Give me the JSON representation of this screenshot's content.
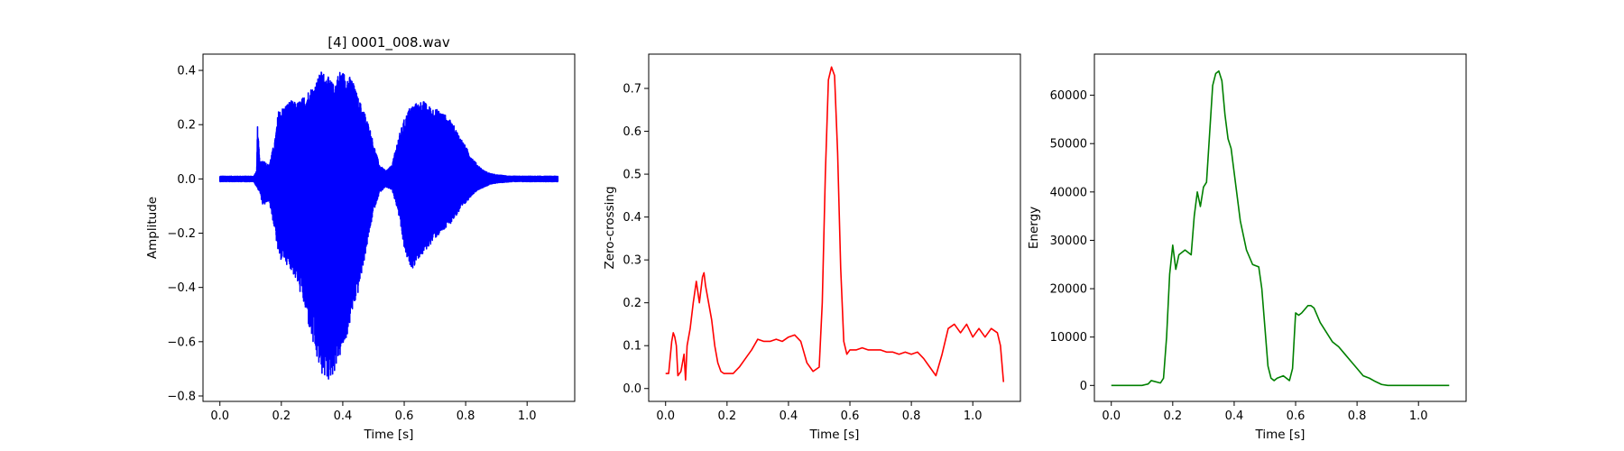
{
  "chart_data": [
    {
      "type": "line",
      "title": "[4] 0001_008.wav",
      "xlabel": "Time [s]",
      "ylabel": "Amplitude",
      "xlim": [
        -0.055,
        1.155
      ],
      "ylim": [
        -0.82,
        0.46
      ],
      "xticks": [
        0.0,
        0.2,
        0.4,
        0.6,
        0.8,
        1.0
      ],
      "xtick_labels": [
        "0.0",
        "0.2",
        "0.4",
        "0.6",
        "0.8",
        "1.0"
      ],
      "yticks": [
        0.4,
        0.2,
        0.0,
        -0.2,
        -0.4,
        -0.6,
        -0.8
      ],
      "ytick_labels": [
        "0.4",
        "0.2",
        "0.0",
        "−0.2",
        "−0.4",
        "−0.6",
        "−0.8"
      ],
      "grid": false,
      "series": [
        {
          "color": "#0000ff",
          "style": "waveform",
          "upper_envelope": {
            "x": [
              0.0,
              0.11,
              0.12,
              0.122,
              0.13,
              0.14,
              0.16,
              0.18,
              0.19,
              0.21,
              0.23,
              0.25,
              0.27,
              0.29,
              0.31,
              0.33,
              0.35,
              0.37,
              0.39,
              0.41,
              0.43,
              0.45,
              0.47,
              0.49,
              0.5,
              0.52,
              0.54,
              0.56,
              0.58,
              0.6,
              0.62,
              0.64,
              0.66,
              0.68,
              0.7,
              0.72,
              0.74,
              0.76,
              0.78,
              0.8,
              0.82,
              0.84,
              0.86,
              0.88,
              0.9,
              0.95,
              1.0,
              1.1
            ],
            "y": [
              0.01,
              0.01,
              0.03,
              0.21,
              0.06,
              0.07,
              0.05,
              0.15,
              0.25,
              0.27,
              0.29,
              0.28,
              0.3,
              0.33,
              0.35,
              0.4,
              0.38,
              0.35,
              0.4,
              0.39,
              0.37,
              0.3,
              0.25,
              0.18,
              0.13,
              0.05,
              0.03,
              0.05,
              0.15,
              0.22,
              0.27,
              0.28,
              0.29,
              0.27,
              0.26,
              0.25,
              0.23,
              0.2,
              0.16,
              0.12,
              0.08,
              0.05,
              0.03,
              0.02,
              0.015,
              0.01,
              0.01,
              0.01
            ]
          },
          "lower_envelope": {
            "x": [
              0.0,
              0.11,
              0.12,
              0.13,
              0.14,
              0.16,
              0.18,
              0.19,
              0.2,
              0.21,
              0.22,
              0.23,
              0.25,
              0.27,
              0.29,
              0.31,
              0.33,
              0.35,
              0.37,
              0.39,
              0.41,
              0.43,
              0.45,
              0.47,
              0.49,
              0.5,
              0.52,
              0.54,
              0.56,
              0.58,
              0.6,
              0.61,
              0.62,
              0.63,
              0.64,
              0.66,
              0.68,
              0.7,
              0.72,
              0.74,
              0.76,
              0.78,
              0.8,
              0.82,
              0.84,
              0.86,
              0.88,
              0.9,
              0.95,
              1.0,
              1.1
            ],
            "y": [
              -0.01,
              -0.01,
              -0.03,
              -0.05,
              -0.1,
              -0.08,
              -0.2,
              -0.28,
              -0.3,
              -0.3,
              -0.32,
              -0.33,
              -0.38,
              -0.45,
              -0.55,
              -0.65,
              -0.72,
              -0.75,
              -0.72,
              -0.66,
              -0.6,
              -0.5,
              -0.42,
              -0.3,
              -0.18,
              -0.12,
              -0.05,
              -0.03,
              -0.04,
              -0.12,
              -0.26,
              -0.3,
              -0.32,
              -0.33,
              -0.3,
              -0.28,
              -0.25,
              -0.22,
              -0.2,
              -0.18,
              -0.15,
              -0.12,
              -0.09,
              -0.06,
              -0.04,
              -0.03,
              -0.02,
              -0.015,
              -0.01,
              -0.01,
              -0.01
            ]
          }
        }
      ]
    },
    {
      "type": "line",
      "title": "",
      "xlabel": "Time [s]",
      "ylabel": "Zero-crossing",
      "xlim": [
        -0.055,
        1.155
      ],
      "ylim": [
        -0.03,
        0.78
      ],
      "xticks": [
        0.0,
        0.2,
        0.4,
        0.6,
        0.8,
        1.0
      ],
      "xtick_labels": [
        "0.0",
        "0.2",
        "0.4",
        "0.6",
        "0.8",
        "1.0"
      ],
      "yticks": [
        0.7,
        0.6,
        0.5,
        0.4,
        0.3,
        0.2,
        0.1,
        0.0
      ],
      "ytick_labels": [
        "0.7",
        "0.6",
        "0.5",
        "0.4",
        "0.3",
        "0.2",
        "0.1",
        "0.0"
      ],
      "grid": false,
      "series": [
        {
          "color": "#ff0000",
          "x": [
            0.0,
            0.01,
            0.02,
            0.025,
            0.03,
            0.035,
            0.04,
            0.05,
            0.06,
            0.065,
            0.07,
            0.08,
            0.09,
            0.1,
            0.11,
            0.12,
            0.125,
            0.13,
            0.14,
            0.15,
            0.16,
            0.17,
            0.18,
            0.19,
            0.2,
            0.22,
            0.24,
            0.26,
            0.28,
            0.3,
            0.32,
            0.34,
            0.36,
            0.38,
            0.4,
            0.42,
            0.44,
            0.46,
            0.48,
            0.5,
            0.51,
            0.52,
            0.53,
            0.54,
            0.55,
            0.56,
            0.57,
            0.58,
            0.59,
            0.6,
            0.62,
            0.64,
            0.66,
            0.68,
            0.7,
            0.72,
            0.74,
            0.76,
            0.78,
            0.8,
            0.82,
            0.84,
            0.86,
            0.88,
            0.9,
            0.92,
            0.94,
            0.96,
            0.98,
            1.0,
            1.02,
            1.04,
            1.06,
            1.08,
            1.09,
            1.1
          ],
          "y": [
            0.035,
            0.035,
            0.11,
            0.13,
            0.12,
            0.1,
            0.03,
            0.04,
            0.08,
            0.02,
            0.1,
            0.14,
            0.2,
            0.25,
            0.2,
            0.26,
            0.27,
            0.24,
            0.2,
            0.16,
            0.1,
            0.06,
            0.04,
            0.035,
            0.035,
            0.035,
            0.05,
            0.07,
            0.09,
            0.115,
            0.11,
            0.11,
            0.115,
            0.11,
            0.12,
            0.125,
            0.11,
            0.06,
            0.04,
            0.05,
            0.2,
            0.5,
            0.72,
            0.75,
            0.73,
            0.55,
            0.28,
            0.11,
            0.08,
            0.09,
            0.09,
            0.095,
            0.09,
            0.09,
            0.09,
            0.085,
            0.085,
            0.08,
            0.085,
            0.08,
            0.085,
            0.07,
            0.05,
            0.03,
            0.08,
            0.14,
            0.15,
            0.13,
            0.15,
            0.12,
            0.14,
            0.12,
            0.14,
            0.13,
            0.1,
            0.015
          ]
        }
      ]
    },
    {
      "type": "line",
      "title": "",
      "xlabel": "Time [s]",
      "ylabel": "Energy",
      "xlim": [
        -0.055,
        1.155
      ],
      "ylim": [
        -3300,
        68500
      ],
      "xticks": [
        0.0,
        0.2,
        0.4,
        0.6,
        0.8,
        1.0
      ],
      "xtick_labels": [
        "0.0",
        "0.2",
        "0.4",
        "0.6",
        "0.8",
        "1.0"
      ],
      "yticks": [
        60000,
        50000,
        40000,
        30000,
        20000,
        10000,
        0
      ],
      "ytick_labels": [
        "60000",
        "50000",
        "40000",
        "30000",
        "20000",
        "10000",
        "0"
      ],
      "grid": false,
      "series": [
        {
          "color": "#008000",
          "x": [
            0.0,
            0.1,
            0.12,
            0.13,
            0.16,
            0.17,
            0.18,
            0.19,
            0.2,
            0.21,
            0.22,
            0.24,
            0.26,
            0.27,
            0.28,
            0.29,
            0.3,
            0.31,
            0.32,
            0.33,
            0.34,
            0.35,
            0.36,
            0.37,
            0.38,
            0.39,
            0.4,
            0.42,
            0.44,
            0.46,
            0.48,
            0.49,
            0.5,
            0.51,
            0.52,
            0.53,
            0.54,
            0.56,
            0.58,
            0.59,
            0.6,
            0.61,
            0.62,
            0.64,
            0.65,
            0.66,
            0.68,
            0.7,
            0.72,
            0.74,
            0.76,
            0.78,
            0.8,
            0.82,
            0.84,
            0.86,
            0.88,
            0.9,
            0.95,
            1.0,
            1.1
          ],
          "y": [
            0,
            0,
            300,
            1000,
            500,
            1500,
            10000,
            23000,
            29000,
            24000,
            27000,
            28000,
            27000,
            35000,
            40000,
            37000,
            41000,
            42000,
            52000,
            62000,
            64500,
            65000,
            63000,
            56000,
            51000,
            49000,
            44000,
            34000,
            28000,
            25000,
            24500,
            20000,
            12000,
            4000,
            1500,
            1000,
            1500,
            2000,
            1000,
            3500,
            15000,
            14500,
            15000,
            16500,
            16500,
            16000,
            13000,
            11000,
            9000,
            8000,
            6500,
            5000,
            3500,
            2000,
            1500,
            800,
            200,
            0,
            0,
            0,
            0
          ]
        }
      ]
    }
  ]
}
